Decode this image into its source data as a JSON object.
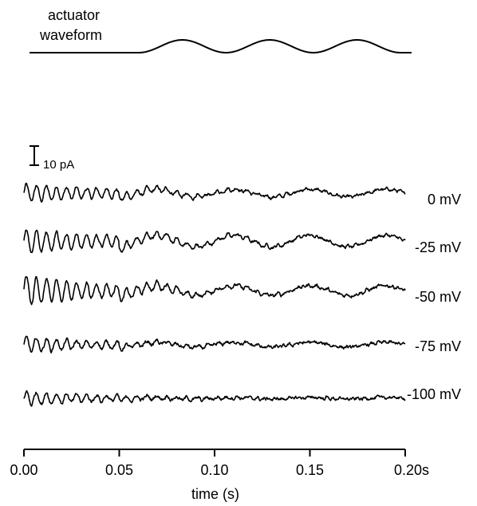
{
  "chart_data": {
    "type": "line",
    "actuator_label_line1": "actuator",
    "actuator_label_line2": "waveform",
    "scale_bar_label": "10 pA",
    "xlabel": "time (s)",
    "x_ticks": [
      "0.00",
      "0.05",
      "0.10",
      "0.15",
      "0.20s"
    ],
    "xlim": [
      0,
      0.2
    ],
    "actuator": {
      "onset_s": 0.05,
      "stimulus_hz": 25,
      "cycles": 3
    },
    "series": [
      {
        "name": "0 mV",
        "fast_hz": 190,
        "fast_amp_pA": 4.5,
        "fast_decay_s": 0.06,
        "slow_amp_pA": 4.0,
        "noise_pA": 0.9
      },
      {
        "name": "-25 mV",
        "fast_hz": 190,
        "fast_amp_pA": 6.5,
        "fast_decay_s": 0.055,
        "slow_amp_pA": 6.0,
        "noise_pA": 0.9
      },
      {
        "name": "-50 mV",
        "fast_hz": 190,
        "fast_amp_pA": 8.0,
        "fast_decay_s": 0.05,
        "slow_amp_pA": 5.0,
        "noise_pA": 1.0
      },
      {
        "name": "-75 mV",
        "fast_hz": 190,
        "fast_amp_pA": 4.0,
        "fast_decay_s": 0.05,
        "slow_amp_pA": 2.5,
        "noise_pA": 1.0
      },
      {
        "name": "-100 mV",
        "fast_hz": 190,
        "fast_amp_pA": 3.5,
        "fast_decay_s": 0.055,
        "slow_amp_pA": 0.8,
        "noise_pA": 1.0
      }
    ]
  }
}
